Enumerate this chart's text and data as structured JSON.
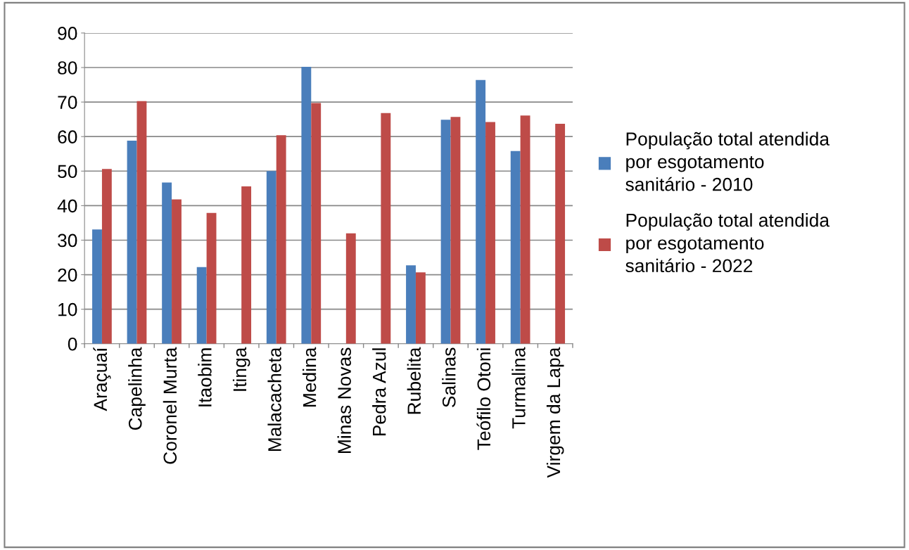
{
  "chart_data": {
    "type": "bar",
    "categories": [
      "Araçuaí",
      "Capelinha",
      "Coronel Murta",
      "Itaobim",
      "Itinga",
      "Malacacheta",
      "Medina",
      "Minas Novas",
      "Pedra Azul",
      "Rubelita",
      "Salinas",
      "Teófilo Otoni",
      "Turmalina",
      "Virgem da Lapa"
    ],
    "series": [
      {
        "name": "População total atendida por esgotamento sanitário - 2010",
        "color": "#4a7ebb",
        "values": [
          33.1,
          58.8,
          46.7,
          22.2,
          null,
          50.0,
          80.2,
          null,
          null,
          22.7,
          64.9,
          76.4,
          55.8,
          null
        ]
      },
      {
        "name": "População total atendida por esgotamento sanitário - 2022",
        "color": "#be4b48",
        "values": [
          50.6,
          70.3,
          41.8,
          37.9,
          45.6,
          60.4,
          69.7,
          32.0,
          66.8,
          20.7,
          65.7,
          64.2,
          66.1,
          63.7
        ]
      }
    ],
    "ylim": [
      0,
      90
    ],
    "yticks": [
      0,
      10,
      20,
      30,
      40,
      50,
      60,
      70,
      80,
      90
    ],
    "grid": "y",
    "legend": "right"
  }
}
